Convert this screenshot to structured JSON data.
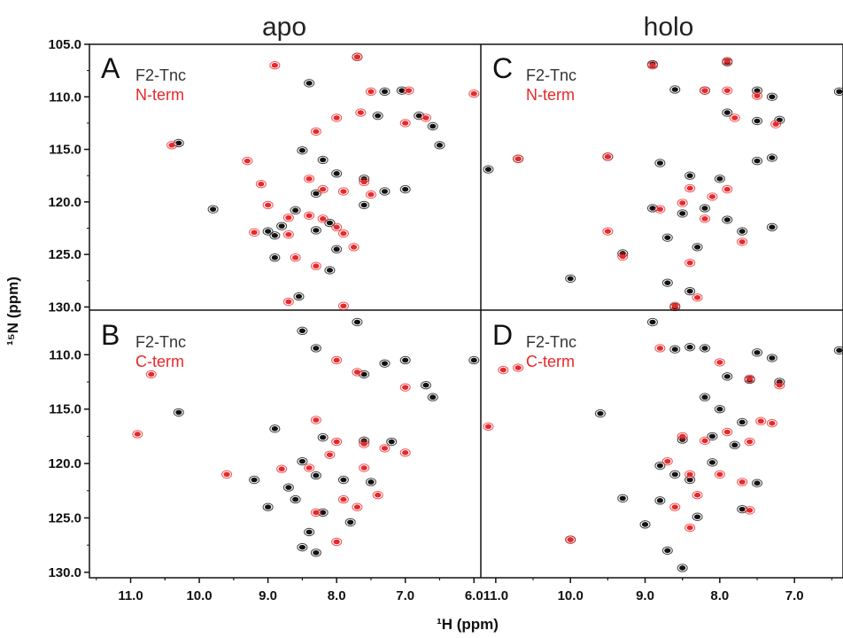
{
  "colors": {
    "black_series": "#111111",
    "red_series": "#e8282a"
  },
  "column_titles": [
    "apo",
    "holo"
  ],
  "xlabel": "¹H (ppm)",
  "ylabel": "¹⁵N (ppm)",
  "chart_data": [
    {
      "type": "scatter",
      "panel": "A",
      "legend": [
        "F2-Tnc",
        "N-term"
      ],
      "xlim": [
        11.6,
        5.9
      ],
      "ylim": [
        105,
        130.3
      ],
      "x_ticks": [
        "11.0",
        "10.0",
        "9.0",
        "8.0",
        "7.0",
        "6.0"
      ],
      "y_ticks": [
        "105.0",
        "110.0",
        "115.0",
        "120.0",
        "125.0",
        "130.0"
      ],
      "series": [
        {
          "name": "F2-Tnc",
          "color": "#111111",
          "points": [
            [
              8.4,
              108.7
            ],
            [
              7.7,
              106.2
            ],
            [
              7.3,
              109.5
            ],
            [
              7.05,
              109.4
            ],
            [
              7.4,
              111.8
            ],
            [
              6.8,
              111.8
            ],
            [
              6.6,
              112.8
            ],
            [
              10.3,
              114.4
            ],
            [
              9.8,
              120.7
            ],
            [
              8.5,
              115.1
            ],
            [
              8.2,
              116.0
            ],
            [
              8.0,
              117.3
            ],
            [
              7.6,
              117.8
            ],
            [
              7.3,
              119.0
            ],
            [
              7.0,
              118.8
            ],
            [
              8.6,
              120.8
            ],
            [
              8.8,
              122.3
            ],
            [
              9.0,
              122.8
            ],
            [
              8.3,
              122.7
            ],
            [
              8.1,
              122.0
            ],
            [
              8.0,
              124.5
            ],
            [
              8.1,
              126.5
            ],
            [
              8.55,
              129.0
            ],
            [
              8.9,
              125.3
            ],
            [
              7.6,
              120.3
            ],
            [
              6.5,
              114.6
            ],
            [
              8.9,
              123.2
            ],
            [
              8.3,
              119.2
            ]
          ]
        },
        {
          "name": "N-term",
          "color": "#e8282a",
          "points": [
            [
              8.9,
              107.0
            ],
            [
              7.7,
              106.2
            ],
            [
              7.5,
              109.5
            ],
            [
              6.95,
              109.4
            ],
            [
              6.0,
              109.7
            ],
            [
              7.65,
              111.5
            ],
            [
              7.0,
              112.5
            ],
            [
              6.7,
              112.0
            ],
            [
              8.0,
              112.0
            ],
            [
              8.3,
              113.3
            ],
            [
              10.4,
              114.6
            ],
            [
              9.3,
              116.1
            ],
            [
              9.1,
              118.3
            ],
            [
              8.4,
              117.8
            ],
            [
              8.2,
              118.8
            ],
            [
              7.9,
              119.0
            ],
            [
              7.5,
              119.3
            ],
            [
              7.6,
              118.1
            ],
            [
              8.7,
              121.5
            ],
            [
              8.4,
              121.3
            ],
            [
              8.2,
              121.6
            ],
            [
              8.0,
              122.4
            ],
            [
              9.2,
              122.9
            ],
            [
              8.7,
              123.1
            ],
            [
              7.9,
              123.0
            ],
            [
              7.75,
              124.3
            ],
            [
              8.6,
              125.3
            ],
            [
              8.3,
              126.1
            ],
            [
              8.7,
              129.5
            ],
            [
              7.9,
              129.9
            ],
            [
              9.0,
              120.3
            ]
          ]
        }
      ]
    },
    {
      "type": "scatter",
      "panel": "C",
      "legend": [
        "F2-Tnc",
        "N-term"
      ],
      "xlim": [
        11.2,
        6.35
      ],
      "ylim": [
        105,
        130.3
      ],
      "x_ticks": [
        "11.0",
        "10.0",
        "9.0",
        "8.0",
        "7.0"
      ],
      "y_ticks": [
        "105.0",
        "110.0",
        "115.0",
        "120.0",
        "125.0",
        "130.0"
      ],
      "series": [
        {
          "name": "F2-Tnc",
          "color": "#111111",
          "points": [
            [
              8.9,
              106.9
            ],
            [
              7.9,
              106.7
            ],
            [
              8.6,
              109.3
            ],
            [
              8.2,
              109.4
            ],
            [
              7.5,
              109.4
            ],
            [
              7.3,
              110.0
            ],
            [
              7.9,
              111.5
            ],
            [
              7.5,
              112.3
            ],
            [
              7.2,
              112.2
            ],
            [
              11.1,
              116.9
            ],
            [
              10.7,
              115.9
            ],
            [
              9.5,
              115.7
            ],
            [
              8.8,
              116.3
            ],
            [
              8.4,
              117.5
            ],
            [
              8.0,
              117.8
            ],
            [
              7.5,
              116.1
            ],
            [
              7.3,
              115.8
            ],
            [
              8.9,
              120.6
            ],
            [
              8.5,
              121.1
            ],
            [
              8.2,
              120.6
            ],
            [
              7.9,
              121.7
            ],
            [
              7.7,
              122.8
            ],
            [
              7.3,
              122.4
            ],
            [
              8.7,
              123.4
            ],
            [
              8.3,
              124.3
            ],
            [
              9.3,
              124.9
            ],
            [
              10.0,
              127.3
            ],
            [
              8.7,
              127.7
            ],
            [
              8.4,
              128.5
            ],
            [
              8.6,
              130.0
            ],
            [
              6.4,
              109.5
            ]
          ]
        },
        {
          "name": "N-term",
          "color": "#e8282a",
          "points": [
            [
              8.9,
              107.0
            ],
            [
              7.9,
              106.6
            ],
            [
              8.2,
              109.4
            ],
            [
              7.9,
              109.4
            ],
            [
              7.5,
              109.9
            ],
            [
              7.8,
              112.0
            ],
            [
              7.25,
              112.6
            ],
            [
              10.7,
              115.9
            ],
            [
              9.5,
              115.7
            ],
            [
              8.4,
              118.7
            ],
            [
              8.1,
              119.5
            ],
            [
              7.9,
              118.8
            ],
            [
              8.8,
              120.7
            ],
            [
              8.5,
              120.1
            ],
            [
              8.2,
              121.6
            ],
            [
              9.5,
              122.8
            ],
            [
              9.3,
              125.2
            ],
            [
              8.4,
              125.8
            ],
            [
              7.7,
              123.8
            ],
            [
              8.6,
              129.9
            ],
            [
              8.3,
              129.1
            ]
          ]
        }
      ]
    },
    {
      "type": "scatter",
      "panel": "B",
      "legend": [
        "F2-Tnc",
        "C-term"
      ],
      "xlim": [
        11.6,
        5.9
      ],
      "ylim": [
        105.9,
        130.5
      ],
      "x_ticks": [
        "11.0",
        "10.0",
        "9.0",
        "8.0",
        "7.0",
        "6.0"
      ],
      "y_ticks": [
        "110.0",
        "115.0",
        "120.0",
        "125.0",
        "130.0"
      ],
      "series": [
        {
          "name": "F2-Tnc",
          "color": "#111111",
          "points": [
            [
              8.3,
              109.4
            ],
            [
              7.7,
              107.0
            ],
            [
              8.5,
              107.8
            ],
            [
              7.3,
              110.8
            ],
            [
              7.0,
              110.5
            ],
            [
              6.0,
              110.5
            ],
            [
              7.6,
              111.8
            ],
            [
              6.7,
              112.8
            ],
            [
              6.6,
              113.9
            ],
            [
              10.3,
              115.3
            ],
            [
              8.9,
              116.8
            ],
            [
              8.2,
              117.6
            ],
            [
              7.6,
              117.9
            ],
            [
              7.2,
              118.0
            ],
            [
              8.5,
              119.8
            ],
            [
              8.3,
              121.1
            ],
            [
              7.9,
              121.5
            ],
            [
              7.5,
              121.7
            ],
            [
              9.2,
              121.5
            ],
            [
              8.6,
              123.3
            ],
            [
              8.2,
              124.5
            ],
            [
              7.8,
              125.4
            ],
            [
              8.4,
              126.3
            ],
            [
              8.3,
              128.2
            ],
            [
              8.5,
              127.7
            ],
            [
              9.0,
              124.0
            ],
            [
              8.7,
              122.2
            ]
          ]
        },
        {
          "name": "C-term",
          "color": "#e8282a",
          "points": [
            [
              10.7,
              111.8
            ],
            [
              10.9,
              117.3
            ],
            [
              9.6,
              121.0
            ],
            [
              8.0,
              110.5
            ],
            [
              7.7,
              111.6
            ],
            [
              7.0,
              113.0
            ],
            [
              8.3,
              116.0
            ],
            [
              8.0,
              118.0
            ],
            [
              7.6,
              118.2
            ],
            [
              7.3,
              118.6
            ],
            [
              7.0,
              119.0
            ],
            [
              8.1,
              119.2
            ],
            [
              8.8,
              120.5
            ],
            [
              8.4,
              120.4
            ],
            [
              7.6,
              120.4
            ],
            [
              7.4,
              122.9
            ],
            [
              7.9,
              123.3
            ],
            [
              7.7,
              124.0
            ],
            [
              8.3,
              124.5
            ],
            [
              8.0,
              127.2
            ]
          ]
        }
      ]
    },
    {
      "type": "scatter",
      "panel": "D",
      "legend": [
        "F2-Tnc",
        "C-term"
      ],
      "xlim": [
        11.2,
        6.35
      ],
      "ylim": [
        105.9,
        130.5
      ],
      "x_ticks": [
        "11.0",
        "10.0",
        "9.0",
        "8.0",
        "7.0"
      ],
      "y_ticks": [
        "110.0",
        "115.0",
        "120.0",
        "125.0",
        "130.0"
      ],
      "series": [
        {
          "name": "F2-Tnc",
          "color": "#111111",
          "points": [
            [
              8.9,
              107.0
            ],
            [
              8.6,
              109.5
            ],
            [
              8.4,
              109.3
            ],
            [
              8.2,
              109.4
            ],
            [
              7.5,
              109.8
            ],
            [
              7.3,
              110.3
            ],
            [
              7.9,
              112.0
            ],
            [
              7.6,
              112.3
            ],
            [
              7.2,
              112.5
            ],
            [
              8.2,
              113.9
            ],
            [
              8.0,
              115.0
            ],
            [
              7.7,
              116.2
            ],
            [
              9.6,
              115.4
            ],
            [
              8.5,
              117.8
            ],
            [
              8.1,
              117.5
            ],
            [
              7.8,
              118.3
            ],
            [
              8.8,
              120.2
            ],
            [
              8.6,
              121.0
            ],
            [
              8.4,
              121.5
            ],
            [
              8.1,
              119.9
            ],
            [
              7.5,
              121.8
            ],
            [
              9.3,
              123.2
            ],
            [
              8.8,
              123.4
            ],
            [
              8.3,
              124.9
            ],
            [
              7.7,
              124.2
            ],
            [
              9.0,
              125.6
            ],
            [
              8.7,
              128.0
            ],
            [
              8.5,
              129.6
            ],
            [
              10.0,
              127.0
            ],
            [
              6.4,
              109.6
            ]
          ]
        },
        {
          "name": "C-term",
          "color": "#e8282a",
          "points": [
            [
              11.1,
              116.6
            ],
            [
              10.7,
              111.2
            ],
            [
              10.9,
              111.4
            ],
            [
              10.0,
              127.0
            ],
            [
              8.8,
              109.4
            ],
            [
              8.0,
              110.7
            ],
            [
              7.6,
              112.2
            ],
            [
              7.2,
              112.8
            ],
            [
              7.45,
              116.1
            ],
            [
              7.3,
              116.3
            ],
            [
              8.5,
              117.5
            ],
            [
              8.2,
              117.9
            ],
            [
              7.9,
              117.1
            ],
            [
              7.6,
              118.0
            ],
            [
              8.7,
              119.8
            ],
            [
              8.4,
              121.0
            ],
            [
              8.0,
              121.0
            ],
            [
              7.7,
              121.7
            ],
            [
              8.3,
              122.9
            ],
            [
              8.6,
              124.0
            ],
            [
              7.6,
              124.3
            ],
            [
              8.4,
              125.9
            ]
          ]
        }
      ]
    }
  ]
}
